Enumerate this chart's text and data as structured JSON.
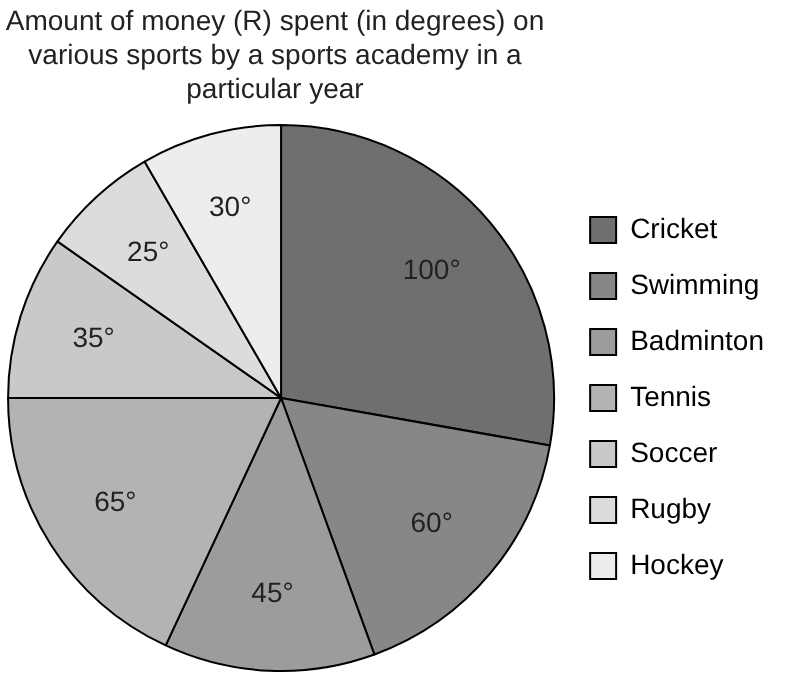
{
  "chart_data": {
    "type": "pie",
    "title": "Amount of money (R) spent (in degrees) on various sports by a sports academy in a particular year",
    "categories": [
      "Cricket",
      "Swimming",
      "Badminton",
      "Tennis",
      "Soccer",
      "Rugby",
      "Hockey"
    ],
    "values": [
      100,
      60,
      45,
      65,
      35,
      25,
      30
    ],
    "colors": [
      "#6f6f6f",
      "#878787",
      "#9c9c9c",
      "#b3b3b3",
      "#c9c9c9",
      "#dcdcdc",
      "#ededed"
    ],
    "value_labels": [
      "100°",
      "60°",
      "45°",
      "65°",
      "35°",
      "25°",
      "30°"
    ],
    "legend": "right"
  }
}
